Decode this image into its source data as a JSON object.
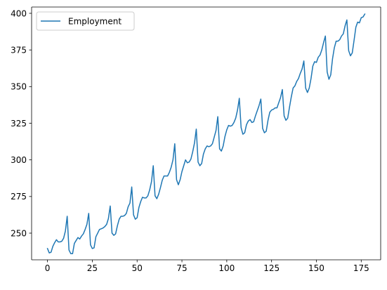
{
  "chart_data": {
    "type": "line",
    "title": "",
    "xlabel": "",
    "ylabel": "",
    "xlim": [
      -8.85,
      185.85
    ],
    "ylim": [
      231.8,
      404.3
    ],
    "x_ticks": [
      0,
      25,
      50,
      75,
      100,
      125,
      150,
      175
    ],
    "y_ticks": [
      250,
      275,
      300,
      325,
      350,
      375,
      400
    ],
    "x_tick_labels": [
      "0",
      "25",
      "50",
      "75",
      "100",
      "125",
      "150",
      "175"
    ],
    "y_tick_labels": [
      "250",
      "275",
      "300",
      "325",
      "350",
      "375",
      "400"
    ],
    "grid": false,
    "legend": {
      "position": "top-left",
      "entries": [
        "Employment"
      ]
    },
    "series": [
      {
        "name": "Employment",
        "color": "#1f77b4",
        "x": [
          0,
          1,
          2,
          3,
          4,
          5,
          6,
          7,
          8,
          9,
          10,
          11,
          12,
          13,
          14,
          15,
          16,
          17,
          18,
          19,
          20,
          21,
          22,
          23,
          24,
          25,
          26,
          27,
          28,
          29,
          30,
          31,
          32,
          33,
          34,
          35,
          36,
          37,
          38,
          39,
          40,
          41,
          42,
          43,
          44,
          45,
          46,
          47,
          48,
          49,
          50,
          51,
          52,
          53,
          54,
          55,
          56,
          57,
          58,
          59,
          60,
          61,
          62,
          63,
          64,
          65,
          66,
          67,
          68,
          69,
          70,
          71,
          72,
          73,
          74,
          75,
          76,
          77,
          78,
          79,
          80,
          81,
          82,
          83,
          84,
          85,
          86,
          87,
          88,
          89,
          90,
          91,
          92,
          93,
          94,
          95,
          96,
          97,
          98,
          99,
          100,
          101,
          102,
          103,
          104,
          105,
          106,
          107,
          108,
          109,
          110,
          111,
          112,
          113,
          114,
          115,
          116,
          117,
          118,
          119,
          120,
          121,
          122,
          123,
          124,
          125,
          126,
          127,
          128,
          129,
          130,
          131,
          132,
          133,
          134,
          135,
          136,
          137,
          138,
          139,
          140,
          141,
          142,
          143,
          144,
          145,
          146,
          147,
          148,
          149,
          150,
          151,
          152,
          153,
          154,
          155,
          156,
          157,
          158,
          159,
          160,
          161,
          162,
          163,
          164,
          165,
          166,
          167,
          168,
          169,
          170,
          171,
          172,
          173,
          174,
          175,
          176,
          177
        ],
        "values": [
          239.5,
          236.5,
          237.0,
          241.0,
          243.5,
          245.5,
          244.0,
          244.0,
          244.5,
          246.5,
          251.5,
          261.5,
          238.5,
          236.0,
          236.0,
          243.0,
          245.0,
          247.0,
          246.0,
          248.0,
          249.5,
          252.5,
          256.0,
          263.5,
          242.0,
          239.5,
          240.0,
          247.5,
          250.0,
          252.5,
          253.0,
          253.5,
          254.5,
          256.0,
          260.0,
          268.5,
          250.0,
          248.5,
          249.5,
          255.0,
          259.5,
          261.5,
          261.5,
          262.0,
          263.5,
          268.0,
          270.5,
          281.5,
          262.5,
          259.5,
          260.5,
          267.5,
          271.5,
          274.5,
          274.0,
          274.0,
          275.5,
          279.5,
          285.0,
          296.0,
          275.5,
          273.5,
          276.5,
          281.0,
          286.0,
          289.0,
          289.0,
          289.0,
          291.5,
          295.0,
          300.0,
          311.0,
          286.5,
          283.0,
          286.5,
          292.0,
          296.0,
          300.0,
          298.0,
          298.5,
          300.5,
          305.5,
          311.5,
          321.0,
          298.5,
          296.0,
          297.5,
          304.0,
          307.5,
          309.5,
          309.0,
          309.5,
          311.0,
          315.5,
          320.0,
          329.5,
          307.5,
          306.0,
          309.5,
          316.0,
          320.5,
          323.5,
          323.0,
          323.5,
          325.5,
          328.5,
          334.0,
          342.0,
          322.0,
          317.5,
          318.5,
          324.0,
          326.5,
          327.5,
          325.5,
          326.0,
          330.0,
          333.5,
          337.0,
          341.5,
          321.5,
          318.5,
          319.5,
          327.0,
          332.5,
          334.0,
          334.5,
          335.5,
          335.5,
          339.0,
          342.5,
          348.0,
          330.0,
          327.0,
          328.5,
          336.0,
          343.0,
          349.0,
          350.5,
          353.5,
          355.5,
          359.0,
          362.0,
          367.5,
          349.0,
          346.0,
          349.0,
          355.5,
          364.0,
          367.0,
          366.5,
          370.0,
          371.5,
          375.0,
          380.0,
          384.5,
          360.0,
          355.0,
          358.0,
          369.0,
          376.5,
          381.0,
          381.0,
          382.0,
          384.5,
          386.0,
          391.5,
          395.5,
          374.5,
          371.0,
          373.0,
          381.5,
          390.5,
          394.0,
          393.5,
          397.0,
          397.5,
          399.5
        ]
      }
    ]
  }
}
